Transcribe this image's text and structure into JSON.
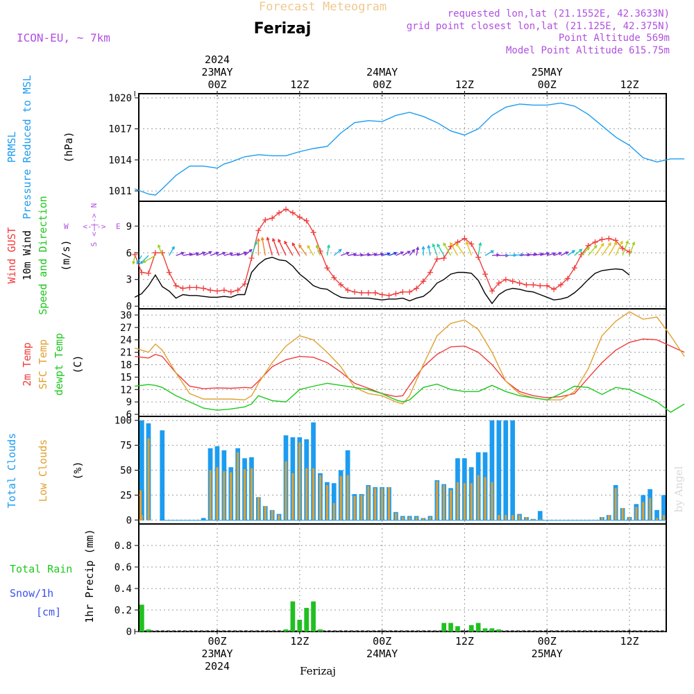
{
  "header": {
    "title": "Forecast Meteogram",
    "location": "Ferizaj",
    "model": "ICON-EU, ~ 7km",
    "requested": "requested lon,lat (21.1552E, 42.3633N)",
    "grid_point": "grid point closest lon,lat (21.125E, 42.375N)",
    "point_altitude": "Point Altitude 569m",
    "model_altitude": "Model Point Altitude 615.75m",
    "footer_location": "Ferizaj",
    "credit": "by Angel",
    "colors": {
      "title": "#f0c890",
      "purple": "#b050e0",
      "location": "#000000"
    }
  },
  "time_axis": {
    "top_labels": [
      {
        "h": 0,
        "lines": [
          "2024",
          "23MAY",
          "00Z"
        ]
      },
      {
        "h": 12,
        "lines": [
          "12Z"
        ]
      },
      {
        "h": 24,
        "lines": [
          "24MAY",
          "00Z"
        ]
      },
      {
        "h": 36,
        "lines": [
          "12Z"
        ]
      },
      {
        "h": 48,
        "lines": [
          "25MAY",
          "00Z"
        ]
      },
      {
        "h": 60,
        "lines": [
          "12Z"
        ]
      }
    ],
    "bottom_labels": [
      {
        "h": 0,
        "lines": [
          "00Z",
          "23MAY",
          "2024"
        ]
      },
      {
        "h": 12,
        "lines": [
          "12Z"
        ]
      },
      {
        "h": 24,
        "lines": [
          "00Z",
          "24MAY"
        ]
      },
      {
        "h": 36,
        "lines": [
          "12Z"
        ]
      },
      {
        "h": 48,
        "lines": [
          "00Z",
          "25MAY"
        ]
      },
      {
        "h": 60,
        "lines": [
          "12Z"
        ]
      }
    ]
  },
  "panel_labels": {
    "pressure": [
      {
        "text": "PRMSL",
        "color": "#1c9cf0"
      },
      {
        "text": "Pressure Reduced to MSL",
        "color": "#1c9cf0"
      },
      {
        "text": "(hPa)",
        "color": "#000000"
      }
    ],
    "wind": [
      {
        "text": "Wind GUST",
        "color": "#f03c3c"
      },
      {
        "text": "10m Wind",
        "color": "#000000"
      },
      {
        "text": "Speed and Direction",
        "color": "#1cc81c"
      },
      {
        "text": "(m/s)",
        "color": "#000000"
      }
    ],
    "compass": {
      "n": "N",
      "s": "S",
      "w": "W",
      "e": "E",
      "arrow_h": "<-|->",
      "arrow_v": "<-|->",
      "color": "#b050e0"
    },
    "temp": [
      {
        "text": "2m Temp",
        "color": "#f03c3c"
      },
      {
        "text": "SFC Temp",
        "color": "#e0a030"
      },
      {
        "text": "dewpt Temp",
        "color": "#1cc81c"
      },
      {
        "text": "(C)",
        "color": "#000000"
      }
    ],
    "cloud": [
      {
        "text": "Total Clouds",
        "color": "#1c9cf0"
      },
      {
        "text": "Low Clouds",
        "color": "#e0a030"
      },
      {
        "text": "(%)",
        "color": "#000000"
      }
    ],
    "precip_left": [
      {
        "text": "Total  Rain",
        "color": "#1cc81c"
      },
      {
        "text": "Snow/1h",
        "color": "#3c50f0"
      },
      {
        "text": "[cm]",
        "color": "#3c50f0"
      }
    ],
    "precip_axis": "1hr Precip (mm)"
  },
  "chart_data": [
    {
      "type": "line",
      "title": "PRMSL Pressure Reduced to MSL",
      "ylabel": "(hPa)",
      "ylim": [
        1010,
        1020.4
      ],
      "yticks": [
        1011,
        1014,
        1017,
        1020
      ],
      "x_hours": [
        -12,
        -10,
        -9,
        -8,
        -6,
        -4,
        -2,
        0,
        1,
        2,
        4,
        6,
        8,
        10,
        12,
        14,
        16,
        18,
        20,
        22,
        24,
        26,
        28,
        30,
        32,
        34,
        36,
        38,
        40,
        42,
        44,
        46,
        48,
        50,
        52,
        54,
        56,
        58,
        60,
        62,
        64,
        66,
        68
      ],
      "series": [
        {
          "name": "PRMSL",
          "color": "#1c9cf0",
          "values": [
            1011.2,
            1010.7,
            1010.6,
            1011.2,
            1012.5,
            1013.4,
            1013.4,
            1013.2,
            1013.6,
            1013.8,
            1014.3,
            1014.5,
            1014.4,
            1014.4,
            1014.8,
            1015.1,
            1015.3,
            1016.6,
            1017.6,
            1017.8,
            1017.7,
            1018.3,
            1018.6,
            1018.2,
            1017.6,
            1016.8,
            1016.4,
            1017.0,
            1018.3,
            1019.1,
            1019.4,
            1019.3,
            1019.3,
            1019.5,
            1019.2,
            1018.4,
            1017.3,
            1016.2,
            1015.4,
            1014.2,
            1013.8,
            1014.1,
            1014.1
          ]
        }
      ]
    },
    {
      "type": "line",
      "title": "Wind GUST / 10m Wind Speed and Direction",
      "ylabel": "(m/s)",
      "ylim": [
        -0.3,
        11.8
      ],
      "yticks": [
        0,
        3,
        6,
        9
      ],
      "x_hours": [
        -12,
        -11,
        -10,
        -9,
        -8,
        -7,
        -6,
        -5,
        -4,
        -3,
        -2,
        -1,
        0,
        1,
        2,
        3,
        4,
        5,
        6,
        7,
        8,
        9,
        10,
        11,
        12,
        13,
        14,
        15,
        16,
        17,
        18,
        19,
        20,
        21,
        22,
        23,
        24,
        25,
        26,
        27,
        28,
        29,
        30,
        31,
        32,
        33,
        34,
        35,
        36,
        37,
        38,
        39,
        40,
        41,
        42,
        43,
        44,
        45,
        46,
        47,
        48,
        49,
        50,
        51,
        52,
        53,
        54,
        55,
        56,
        57,
        58,
        59,
        60,
        61,
        62,
        63,
        64,
        65,
        66,
        67,
        68
      ],
      "series": [
        {
          "name": "Wind GUST",
          "color": "#f03c3c",
          "marker": "+",
          "values": [
            5.8,
            3.8,
            3.7,
            6.0,
            6.0,
            3.8,
            2.3,
            2.0,
            2.1,
            2.1,
            2.0,
            1.8,
            1.7,
            1.8,
            1.6,
            1.8,
            2.5,
            5.4,
            8.5,
            9.7,
            9.9,
            10.5,
            10.9,
            10.5,
            10.0,
            9.6,
            8.3,
            6.2,
            4.3,
            3.2,
            2.4,
            1.8,
            1.6,
            1.5,
            1.5,
            1.5,
            1.3,
            1.2,
            1.4,
            1.6,
            1.6,
            2.0,
            2.8,
            3.8,
            5.3,
            5.4,
            6.7,
            7.2,
            7.6,
            7.0,
            5.5,
            3.6,
            1.7,
            2.6,
            3.0,
            2.8,
            2.6,
            2.4,
            2.4,
            2.3,
            2.3,
            1.9,
            2.4,
            3.1,
            4.3,
            5.8,
            6.8,
            7.2,
            7.5,
            7.6,
            7.4,
            6.5,
            6.1
          ]
        },
        {
          "name": "10m Wind",
          "color": "#000000",
          "values": [
            1.0,
            1.4,
            2.3,
            3.5,
            2.2,
            1.7,
            0.9,
            1.3,
            1.2,
            1.2,
            1.1,
            1.0,
            1.0,
            1.1,
            1.0,
            1.3,
            1.3,
            3.8,
            4.7,
            5.3,
            5.5,
            5.2,
            5.1,
            4.5,
            3.6,
            3.0,
            2.3,
            2.0,
            1.9,
            1.4,
            1.0,
            0.9,
            0.9,
            0.9,
            0.9,
            0.8,
            0.7,
            0.8,
            0.8,
            0.9,
            0.6,
            0.9,
            1.1,
            1.7,
            2.6,
            3.0,
            3.6,
            3.8,
            3.8,
            3.7,
            2.9,
            1.4,
            0.3,
            1.3,
            1.8,
            2.0,
            1.9,
            1.7,
            1.6,
            1.3,
            1.0,
            0.7,
            0.8,
            1.0,
            1.5,
            2.2,
            3.0,
            3.7,
            4.0,
            4.1,
            4.2,
            4.1,
            3.5
          ]
        }
      ],
      "direction_arrows": {
        "start_hour": -12,
        "step_hours": 1,
        "from_deg": [
          10,
          30,
          45,
          60,
          160,
          210,
          250,
          260,
          255,
          250,
          245,
          250,
          250,
          255,
          260,
          250,
          230,
          200,
          180,
          170,
          165,
          160,
          155,
          150,
          150,
          145,
          150,
          160,
          190,
          230,
          250,
          260,
          265,
          262,
          260,
          258,
          255,
          250,
          245,
          240,
          220,
          190,
          180,
          170,
          160,
          150,
          150,
          150,
          145,
          160,
          190,
          240,
          265,
          270,
          268,
          265,
          265,
          262,
          260,
          255,
          255,
          250,
          245,
          235,
          230,
          225,
          220,
          215,
          215,
          210,
          205,
          200,
          200
        ]
      }
    },
    {
      "type": "line",
      "title": "2m Temp / SFC Temp / dewpt Temp",
      "ylabel": "(C)",
      "ylim": [
        5.5,
        31.5
      ],
      "yticks": [
        6,
        9,
        12,
        15,
        18,
        21,
        24,
        27,
        30
      ],
      "x_hours": [
        -12,
        -10,
        -9,
        -8,
        -6,
        -4,
        -2,
        0,
        2,
        4,
        5,
        6,
        8,
        10,
        12,
        14,
        16,
        18,
        20,
        22,
        24,
        26,
        27,
        28,
        30,
        32,
        34,
        36,
        38,
        40,
        42,
        44,
        46,
        48,
        50,
        52,
        54,
        56,
        58,
        60,
        62,
        64,
        66,
        68
      ],
      "series": [
        {
          "name": "2m Temp",
          "color": "#f03c3c",
          "values": [
            20.0,
            19.6,
            20.5,
            20.0,
            16.0,
            12.8,
            12.2,
            12.4,
            12.3,
            12.5,
            12.4,
            14.0,
            17.5,
            19.2,
            20.0,
            19.8,
            18.5,
            16.2,
            13.5,
            12.3,
            11.0,
            10.3,
            10.5,
            13.0,
            17.5,
            20.5,
            22.3,
            22.5,
            21.0,
            18.0,
            14.0,
            11.5,
            10.5,
            10.0,
            10.3,
            11.0,
            14.8,
            18.5,
            21.5,
            23.4,
            24.2,
            24.0,
            22.5,
            21.0
          ]
        },
        {
          "name": "SFC Temp",
          "color": "#e0a030",
          "values": [
            22.0,
            21.0,
            23.0,
            21.5,
            16.0,
            11.0,
            9.7,
            9.7,
            9.7,
            9.5,
            10.5,
            13.5,
            18.5,
            22.5,
            25.0,
            24.0,
            21.0,
            17.5,
            12.5,
            11.0,
            10.5,
            9.0,
            8.5,
            10.5,
            18.0,
            25.0,
            28.0,
            28.8,
            26.5,
            21.0,
            14.0,
            11.0,
            10.0,
            9.5,
            9.5,
            11.5,
            17.0,
            25.0,
            28.5,
            30.8,
            29.0,
            29.5,
            25.0,
            20.0
          ]
        },
        {
          "name": "dewpt Temp",
          "color": "#1cc81c",
          "values": [
            12.8,
            13.2,
            13.0,
            12.5,
            10.5,
            9.0,
            7.5,
            7.0,
            7.3,
            7.8,
            8.5,
            10.5,
            9.3,
            9.0,
            12.0,
            12.8,
            13.5,
            13.0,
            12.5,
            12.0,
            11.0,
            9.5,
            9.0,
            9.5,
            12.5,
            13.3,
            12.0,
            11.5,
            11.5,
            13.0,
            11.5,
            10.5,
            10.0,
            9.5,
            11.0,
            12.8,
            12.5,
            10.8,
            12.5,
            12.0,
            10.5,
            9.0,
            6.5,
            8.5
          ]
        }
      ]
    },
    {
      "type": "bar",
      "title": "Total Clouds / Low Clouds",
      "ylabel": "(%)",
      "ylim": [
        -4,
        104
      ],
      "yticks": [
        0,
        25,
        50,
        75,
        100
      ],
      "start_hour": -12,
      "step_hours": 1,
      "series": [
        {
          "name": "Total Clouds",
          "color": "#1c9cf0",
          "values": [
            30,
            100,
            97,
            0,
            90,
            0,
            0,
            0,
            0,
            0,
            2,
            72,
            74,
            70,
            53,
            72,
            62,
            63,
            23,
            14,
            10,
            6,
            85,
            83,
            83,
            81,
            98,
            47,
            38,
            37,
            50,
            70,
            26,
            26,
            35,
            33,
            33,
            33,
            8,
            4,
            4,
            4,
            2,
            4,
            40,
            36,
            32,
            62,
            62,
            53,
            68,
            68,
            100,
            100,
            100,
            100,
            6,
            3,
            1,
            9,
            0,
            0,
            0,
            0,
            0,
            0,
            0,
            0,
            3,
            5,
            35,
            12,
            3,
            16,
            25,
            31,
            10,
            25,
            62,
            36
          ]
        },
        {
          "name": "Low Clouds",
          "color": "#e0a030",
          "values": [
            30,
            5,
            82,
            0,
            0,
            0,
            0,
            0,
            0,
            0,
            0,
            50,
            53,
            49,
            48,
            68,
            51,
            52,
            23,
            14,
            10,
            5,
            59,
            47,
            78,
            52,
            52,
            45,
            35,
            17,
            44,
            45,
            24,
            25,
            34,
            32,
            32,
            33,
            7,
            3,
            3,
            3,
            2,
            3,
            39,
            35,
            30,
            38,
            37,
            37,
            45,
            43,
            38,
            5,
            5,
            5,
            5,
            3,
            1,
            1,
            0,
            0,
            0,
            0,
            0,
            0,
            0,
            0,
            3,
            5,
            32,
            12,
            3,
            13,
            18,
            22,
            2,
            5,
            0,
            0
          ]
        }
      ]
    },
    {
      "type": "bar",
      "title": "1hr Precip",
      "ylabel": "1hr Precip (mm)",
      "ylim": [
        0,
        1
      ],
      "yticks": [
        0,
        0.2,
        0.4,
        0.6,
        0.8
      ],
      "start_hour": -12,
      "step_hours": 1,
      "series": [
        {
          "name": "Total Rain",
          "color": "#20c020",
          "values": [
            0.0,
            0.25,
            0.02,
            0,
            0,
            0,
            0,
            0,
            0,
            0,
            0,
            0,
            0,
            0,
            0,
            0,
            0,
            0,
            0,
            0,
            0,
            0,
            0.02,
            0.28,
            0.11,
            0.22,
            0.28,
            0.02,
            0,
            0,
            0,
            0,
            0,
            0,
            0,
            0,
            0,
            0,
            0,
            0,
            0,
            0,
            0,
            0,
            0,
            0.08,
            0.08,
            0.05,
            0,
            0.06,
            0.08,
            0.03,
            0.03,
            0.02,
            0,
            0,
            0,
            0,
            0,
            0,
            0,
            0,
            0,
            0,
            0,
            0,
            0,
            0,
            0,
            0,
            0,
            0,
            0,
            0,
            0,
            0,
            0,
            0,
            0,
            0,
            0,
            0
          ]
        },
        {
          "name": "Snow/1h",
          "color": "#3c50f0",
          "values": []
        }
      ]
    }
  ]
}
